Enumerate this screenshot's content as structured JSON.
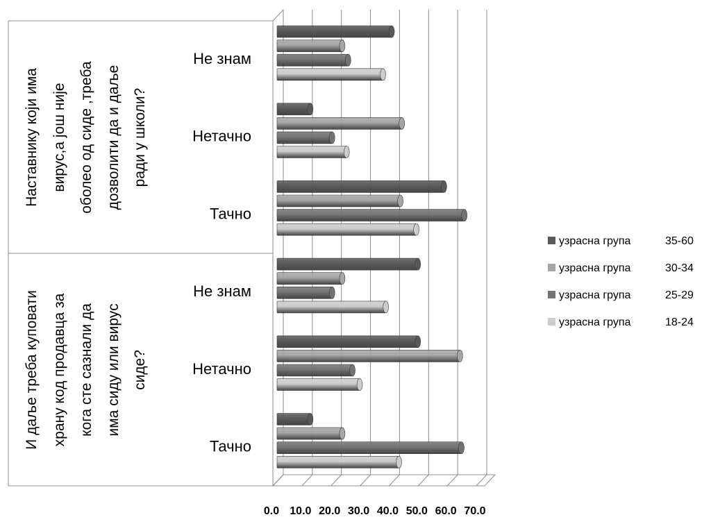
{
  "chart_data": {
    "type": "bar",
    "orientation": "horizontal",
    "title": "",
    "xlabel": "",
    "ylabel": "",
    "xlim": [
      0,
      70
    ],
    "x_ticks": [
      "0.0",
      "10.0",
      "20.0",
      "30.0",
      "40.0",
      "50.0",
      "60.0",
      "70.0"
    ],
    "grid": true,
    "legend_position": "right",
    "groups": [
      {
        "label_lines": [
          "Наставнику који има",
          "вирус,а још није",
          "оболео од сиде ,треба",
          "дозволити да и даље",
          "ради у школи?"
        ],
        "categories": [
          "Не знам",
          "Нетачно",
          "Тачно"
        ]
      },
      {
        "label_lines": [
          "И даље треба куповати",
          "храну код продавца за",
          "кога сте сазнали да",
          "има сиду или вирус",
          "сиде?"
        ],
        "categories": [
          "Не знам",
          "Нетачно",
          "Тачно"
        ]
      }
    ],
    "series": [
      {
        "name": "узрасна група",
        "range": "35-60",
        "color": "#595959",
        "values": [
          38.0,
          10.0,
          56.0,
          47.0,
          47.0,
          10.0
        ]
      },
      {
        "name": "узрасна група",
        "range": "30-34",
        "color": "#a6a6a6",
        "values": [
          21.0,
          41.5,
          41.0,
          21.0,
          61.5,
          21.0
        ]
      },
      {
        "name": "узрасна група",
        "range": "25-29",
        "color": "#737373",
        "values": [
          23.0,
          17.5,
          63.0,
          17.5,
          24.5,
          62.0
        ]
      },
      {
        "name": "узрасна група",
        "range": "18-24",
        "color": "#cccccc",
        "values": [
          35.0,
          22.5,
          46.5,
          36.0,
          27.0,
          40.5
        ]
      }
    ]
  }
}
